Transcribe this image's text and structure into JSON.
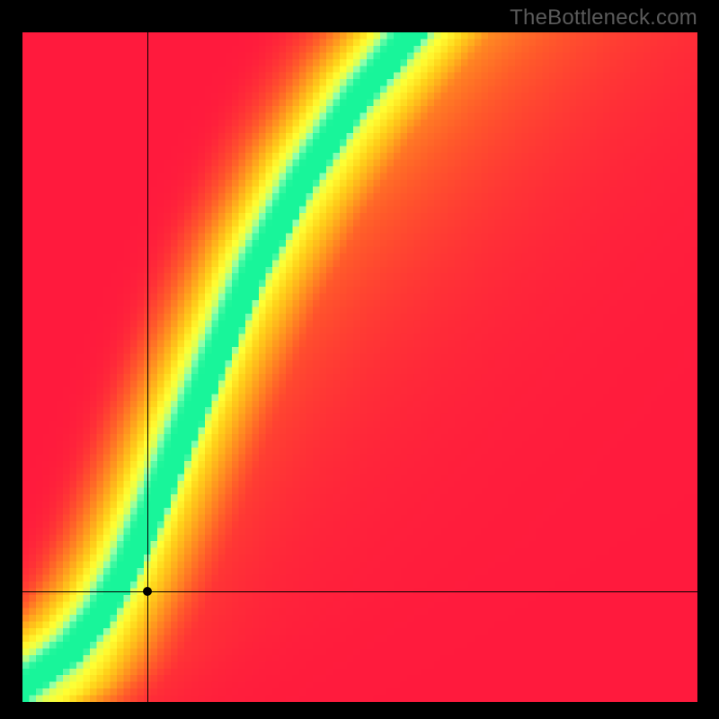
{
  "watermark": {
    "text": "TheBottleneck.com",
    "color": "#5a5a5a",
    "fontsize": 24
  },
  "canvas": {
    "widthPx": 800,
    "heightPx": 800,
    "backgroundColor": "#000000"
  },
  "heatmap": {
    "type": "heatmap",
    "gridCells": 100,
    "plotLeftPx": 25,
    "plotTopPx": 36,
    "plotWidthPx": 751,
    "plotHeightPx": 745,
    "colorStops": [
      {
        "t": 0.0,
        "color": "#ff1a3d"
      },
      {
        "t": 0.3,
        "color": "#ff5a2a"
      },
      {
        "t": 0.55,
        "color": "#ff9a1e"
      },
      {
        "t": 0.75,
        "color": "#ffd21a"
      },
      {
        "t": 0.88,
        "color": "#ffff33"
      },
      {
        "t": 0.94,
        "color": "#d8ff5a"
      },
      {
        "t": 0.97,
        "color": "#8cffb0"
      },
      {
        "t": 1.0,
        "color": "#18f59a"
      }
    ],
    "ridge": {
      "controlPoints": [
        {
          "u": 0.0,
          "v": 0.0
        },
        {
          "u": 0.04,
          "v": 0.03
        },
        {
          "u": 0.085,
          "v": 0.065
        },
        {
          "u": 0.13,
          "v": 0.12
        },
        {
          "u": 0.17,
          "v": 0.19
        },
        {
          "u": 0.21,
          "v": 0.28
        },
        {
          "u": 0.25,
          "v": 0.38
        },
        {
          "u": 0.3,
          "v": 0.5
        },
        {
          "u": 0.36,
          "v": 0.64
        },
        {
          "u": 0.43,
          "v": 0.77
        },
        {
          "u": 0.51,
          "v": 0.89
        },
        {
          "u": 0.6,
          "v": 1.0
        }
      ],
      "greenHalfWidthU": 0.028,
      "yellowHalfWidthU": 0.085,
      "falloffSharpness": 2.2
    },
    "cornerDamping": {
      "rightRedStrength": 0.65,
      "bottomRedStrength": 0.85,
      "topLeftRedStrength": 0.75
    }
  },
  "marker": {
    "u": 0.185,
    "v": 0.165,
    "dotRadiusPx": 5,
    "lineWidthPx": 1,
    "color": "#000000"
  }
}
